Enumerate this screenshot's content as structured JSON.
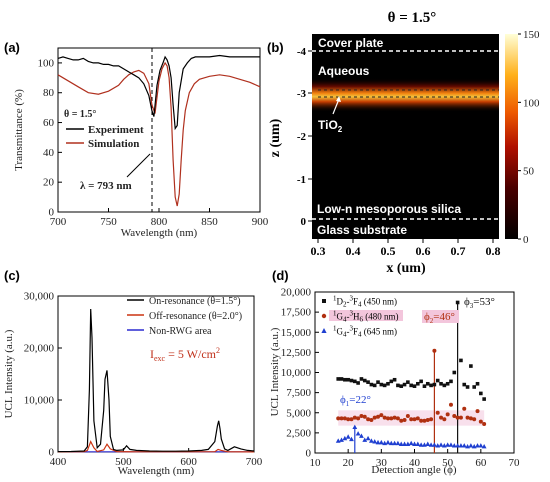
{
  "figure_title": "θ = 1.5°",
  "colors": {
    "experiment": "#000000",
    "simulation": "#b0301e",
    "off": "#cc3311",
    "nonrwg": "#2b2bd0",
    "s450": "#111111",
    "s480": "#b03010",
    "s645": "#1f3fd0",
    "resonance_pink": "#f3c6dc"
  },
  "chart_data": [
    {
      "panel_label": "(a)",
      "type": "line",
      "xlabel": "Wavelength (nm)",
      "ylabel": "Transmittance (%)",
      "xlim": [
        700,
        900
      ],
      "ylim": [
        0,
        110
      ],
      "xticks": [
        "700",
        "750",
        "800",
        "850",
        "900"
      ],
      "yticks": [
        "0",
        "20",
        "40",
        "60",
        "80",
        "100"
      ],
      "annotations": [
        "θ = 1.5°",
        "λ = 793 nm"
      ],
      "dashed_line_x": 793,
      "series": [
        {
          "name": "Experiment",
          "color": "#000000",
          "x": [
            700,
            705,
            710,
            715,
            720,
            725,
            730,
            735,
            740,
            745,
            750,
            755,
            760,
            765,
            770,
            775,
            780,
            785,
            790,
            793,
            795,
            798,
            801,
            804,
            806,
            808,
            810,
            812,
            814,
            816,
            818,
            820,
            824,
            828,
            832,
            836,
            840,
            850,
            860,
            870,
            880,
            890,
            900
          ],
          "y": [
            103,
            104,
            103,
            102,
            102,
            103,
            101,
            100,
            100,
            99,
            99,
            98,
            98,
            96,
            94,
            92,
            90,
            86,
            78,
            68,
            64,
            85,
            95,
            100,
            104,
            102,
            98,
            90,
            72,
            56,
            58,
            80,
            96,
            100,
            103,
            104,
            104,
            104,
            105,
            104,
            104,
            104,
            104
          ]
        },
        {
          "name": "Simulation",
          "color": "#b0301e",
          "x": [
            700,
            710,
            720,
            730,
            740,
            750,
            760,
            765,
            770,
            775,
            780,
            785,
            790,
            793,
            796,
            800,
            803,
            806,
            808,
            810,
            812,
            814,
            816,
            818,
            820,
            822,
            824,
            826,
            830,
            835,
            840,
            850,
            860,
            870,
            880,
            890,
            900
          ],
          "y": [
            92,
            88,
            84,
            80,
            79,
            81,
            85,
            89,
            92,
            94,
            95,
            93,
            86,
            72,
            66,
            88,
            96,
            100,
            98,
            90,
            70,
            35,
            10,
            4,
            12,
            35,
            55,
            68,
            80,
            86,
            89,
            91,
            92,
            91,
            89,
            87,
            84
          ]
        }
      ]
    },
    {
      "panel_label": "(b)",
      "type": "heatmap",
      "xlabel": "x (um)",
      "ylabel": "z (um)",
      "xticks": [
        "0.3",
        "0.4",
        "0.5",
        "0.6",
        "0.7",
        "0.8"
      ],
      "yticks": [
        "-4",
        "-3",
        "-2",
        "-1",
        "0"
      ],
      "colorbar_ticks": [
        "150",
        "100",
        "50",
        "0"
      ],
      "colorbar_range": [
        0,
        150
      ],
      "region_labels": [
        "Cover plate",
        "Aqueous",
        "TiO",
        "2",
        "Low-n mesoporous silica",
        "Glass substrate"
      ],
      "hot_band_z": -3.0
    },
    {
      "panel_label": "(c)",
      "type": "line",
      "xlabel": "Wavelength (nm)",
      "ylabel": "UCL Intensity (a.u.)",
      "xlim": [
        400,
        700
      ],
      "ylim": [
        0,
        30000
      ],
      "xticks": [
        "400",
        "500",
        "600",
        "700"
      ],
      "yticks": [
        "0",
        "10,000",
        "20,000",
        "30,000"
      ],
      "annotation": "I",
      "annotation_sub": "exc",
      "annotation_rest": " = 5 W/cm",
      "annotation_sup": "2",
      "series": [
        {
          "name": "On-resonance (θ=1.5°)",
          "color": "#000000",
          "x": [
            400,
            420,
            440,
            445,
            448,
            450,
            452,
            455,
            460,
            465,
            470,
            472,
            475,
            478,
            480,
            485,
            490,
            500,
            505,
            510,
            520,
            540,
            560,
            580,
            600,
            620,
            630,
            640,
            644,
            646,
            648,
            650,
            655,
            660,
            670,
            680,
            690,
            700
          ],
          "y": [
            80,
            100,
            200,
            1000,
            12000,
            27500,
            22000,
            6000,
            800,
            1500,
            8000,
            14000,
            15700,
            10000,
            3000,
            500,
            300,
            400,
            1200,
            500,
            300,
            200,
            150,
            150,
            200,
            300,
            500,
            2000,
            5000,
            6000,
            4500,
            2500,
            600,
            300,
            1000,
            600,
            300,
            200
          ]
        },
        {
          "name": "Off-resonance (θ=2.0°)",
          "color": "#cc3311",
          "x": [
            400,
            440,
            445,
            450,
            455,
            460,
            470,
            475,
            480,
            490,
            520,
            600,
            640,
            645,
            650,
            660,
            700
          ],
          "y": [
            20,
            50,
            300,
            2000,
            800,
            100,
            400,
            1500,
            600,
            60,
            40,
            30,
            60,
            500,
            300,
            30,
            20
          ]
        },
        {
          "name": "Non-RWG area",
          "color": "#2b2bd0",
          "x": [
            400,
            450,
            500,
            550,
            600,
            650,
            700
          ],
          "y": [
            20,
            40,
            30,
            20,
            20,
            30,
            20
          ]
        }
      ]
    },
    {
      "panel_label": "(d)",
      "type": "scatter",
      "xlabel": "Detection angle (ϕ)",
      "ylabel": "UCL Intensity (a.u.)",
      "xlim": [
        10,
        70
      ],
      "ylim": [
        0,
        20000
      ],
      "xticks": [
        "10",
        "20",
        "30",
        "40",
        "50",
        "60",
        "70"
      ],
      "yticks": [
        "0",
        "2,500",
        "5,000",
        "7,500",
        "10,000",
        "12,500",
        "15,000",
        "17,500",
        "20,000"
      ],
      "legend": [
        {
          "sup1": "1",
          "main1": "D",
          "sub1": "2",
          "dash": "-",
          "sup2": "3",
          "main2": "F",
          "sub2": "4",
          "rest": " (450 nm)"
        },
        {
          "sup1": "1",
          "main1": "G",
          "sub1": "4",
          "dash": "-",
          "sup2": "3",
          "main2": "H",
          "sub2": "6",
          "rest": " (480 nm)"
        },
        {
          "sup1": "1",
          "main1": "G",
          "sub1": "4",
          "dash": "-",
          "sup2": "3",
          "main2": "F",
          "sub2": "4",
          "rest": " (645 nm)"
        }
      ],
      "annotations": [
        {
          "phi": "ϕ",
          "sub": "1",
          "val": "=22°",
          "angle": 22
        },
        {
          "phi": "ϕ",
          "sub": "2",
          "val": "=46°",
          "angle": 46
        },
        {
          "phi": "ϕ",
          "sub": "3",
          "val": "=53°",
          "angle": 53
        }
      ],
      "series": [
        {
          "name": "450 nm",
          "color": "#111111",
          "marker": "square",
          "x": [
            17,
            18,
            19,
            20,
            21,
            22,
            23,
            24,
            25,
            26,
            27,
            28,
            29,
            30,
            31,
            32,
            33,
            34,
            35,
            36,
            37,
            38,
            39,
            40,
            41,
            42,
            43,
            44,
            45,
            46,
            47,
            48,
            49,
            50,
            51,
            52,
            53,
            54,
            55,
            56,
            57,
            58,
            59,
            60,
            61
          ],
          "y": [
            9200,
            9200,
            9100,
            9100,
            9000,
            8900,
            8700,
            9200,
            9000,
            8800,
            8500,
            8400,
            8800,
            8500,
            8400,
            8600,
            8900,
            9100,
            8400,
            8300,
            8500,
            8800,
            8400,
            8300,
            8600,
            8900,
            8300,
            8600,
            8400,
            8500,
            9000,
            8600,
            8400,
            8600,
            8900,
            10000,
            18700,
            11500,
            8500,
            8200,
            10800,
            8200,
            8600,
            7400,
            6700
          ]
        },
        {
          "name": "480 nm",
          "color": "#b03010",
          "marker": "circle",
          "x": [
            17,
            18,
            19,
            20,
            21,
            22,
            23,
            24,
            25,
            26,
            27,
            28,
            29,
            30,
            31,
            32,
            33,
            34,
            35,
            36,
            37,
            38,
            39,
            40,
            41,
            42,
            43,
            44,
            45,
            46,
            47,
            48,
            49,
            50,
            51,
            52,
            53,
            54,
            55,
            56,
            57,
            58,
            59,
            60,
            61
          ],
          "y": [
            4300,
            4300,
            4300,
            4200,
            4200,
            4400,
            4300,
            4600,
            4500,
            4200,
            4100,
            4400,
            4500,
            4700,
            4400,
            4300,
            4300,
            4400,
            4300,
            4000,
            4100,
            4600,
            4200,
            4200,
            4300,
            4000,
            4000,
            4100,
            4200,
            12700,
            5000,
            4400,
            4200,
            4800,
            6000,
            4600,
            4400,
            4400,
            5500,
            4400,
            4300,
            4200,
            5200,
            3900,
            3600
          ]
        },
        {
          "name": "645 nm",
          "color": "#1f3fd0",
          "marker": "triangle",
          "x": [
            17,
            18,
            19,
            20,
            21,
            22,
            23,
            24,
            25,
            26,
            27,
            28,
            29,
            30,
            31,
            32,
            33,
            34,
            35,
            36,
            37,
            38,
            39,
            40,
            41,
            42,
            43,
            44,
            45,
            46,
            47,
            48,
            49,
            50,
            51,
            52,
            53,
            54,
            55,
            56,
            57,
            58,
            59,
            60,
            61
          ],
          "y": [
            1500,
            1600,
            1800,
            2000,
            1700,
            3200,
            2400,
            2100,
            1600,
            1800,
            1500,
            1400,
            1300,
            1300,
            1200,
            1300,
            1200,
            1200,
            1200,
            1100,
            1100,
            1100,
            1200,
            1100,
            1100,
            1000,
            1000,
            1100,
            1000,
            1000,
            900,
            1000,
            900,
            1000,
            1000,
            900,
            900,
            900,
            900,
            800,
            900,
            800,
            900,
            900,
            800
          ]
        }
      ]
    }
  ]
}
